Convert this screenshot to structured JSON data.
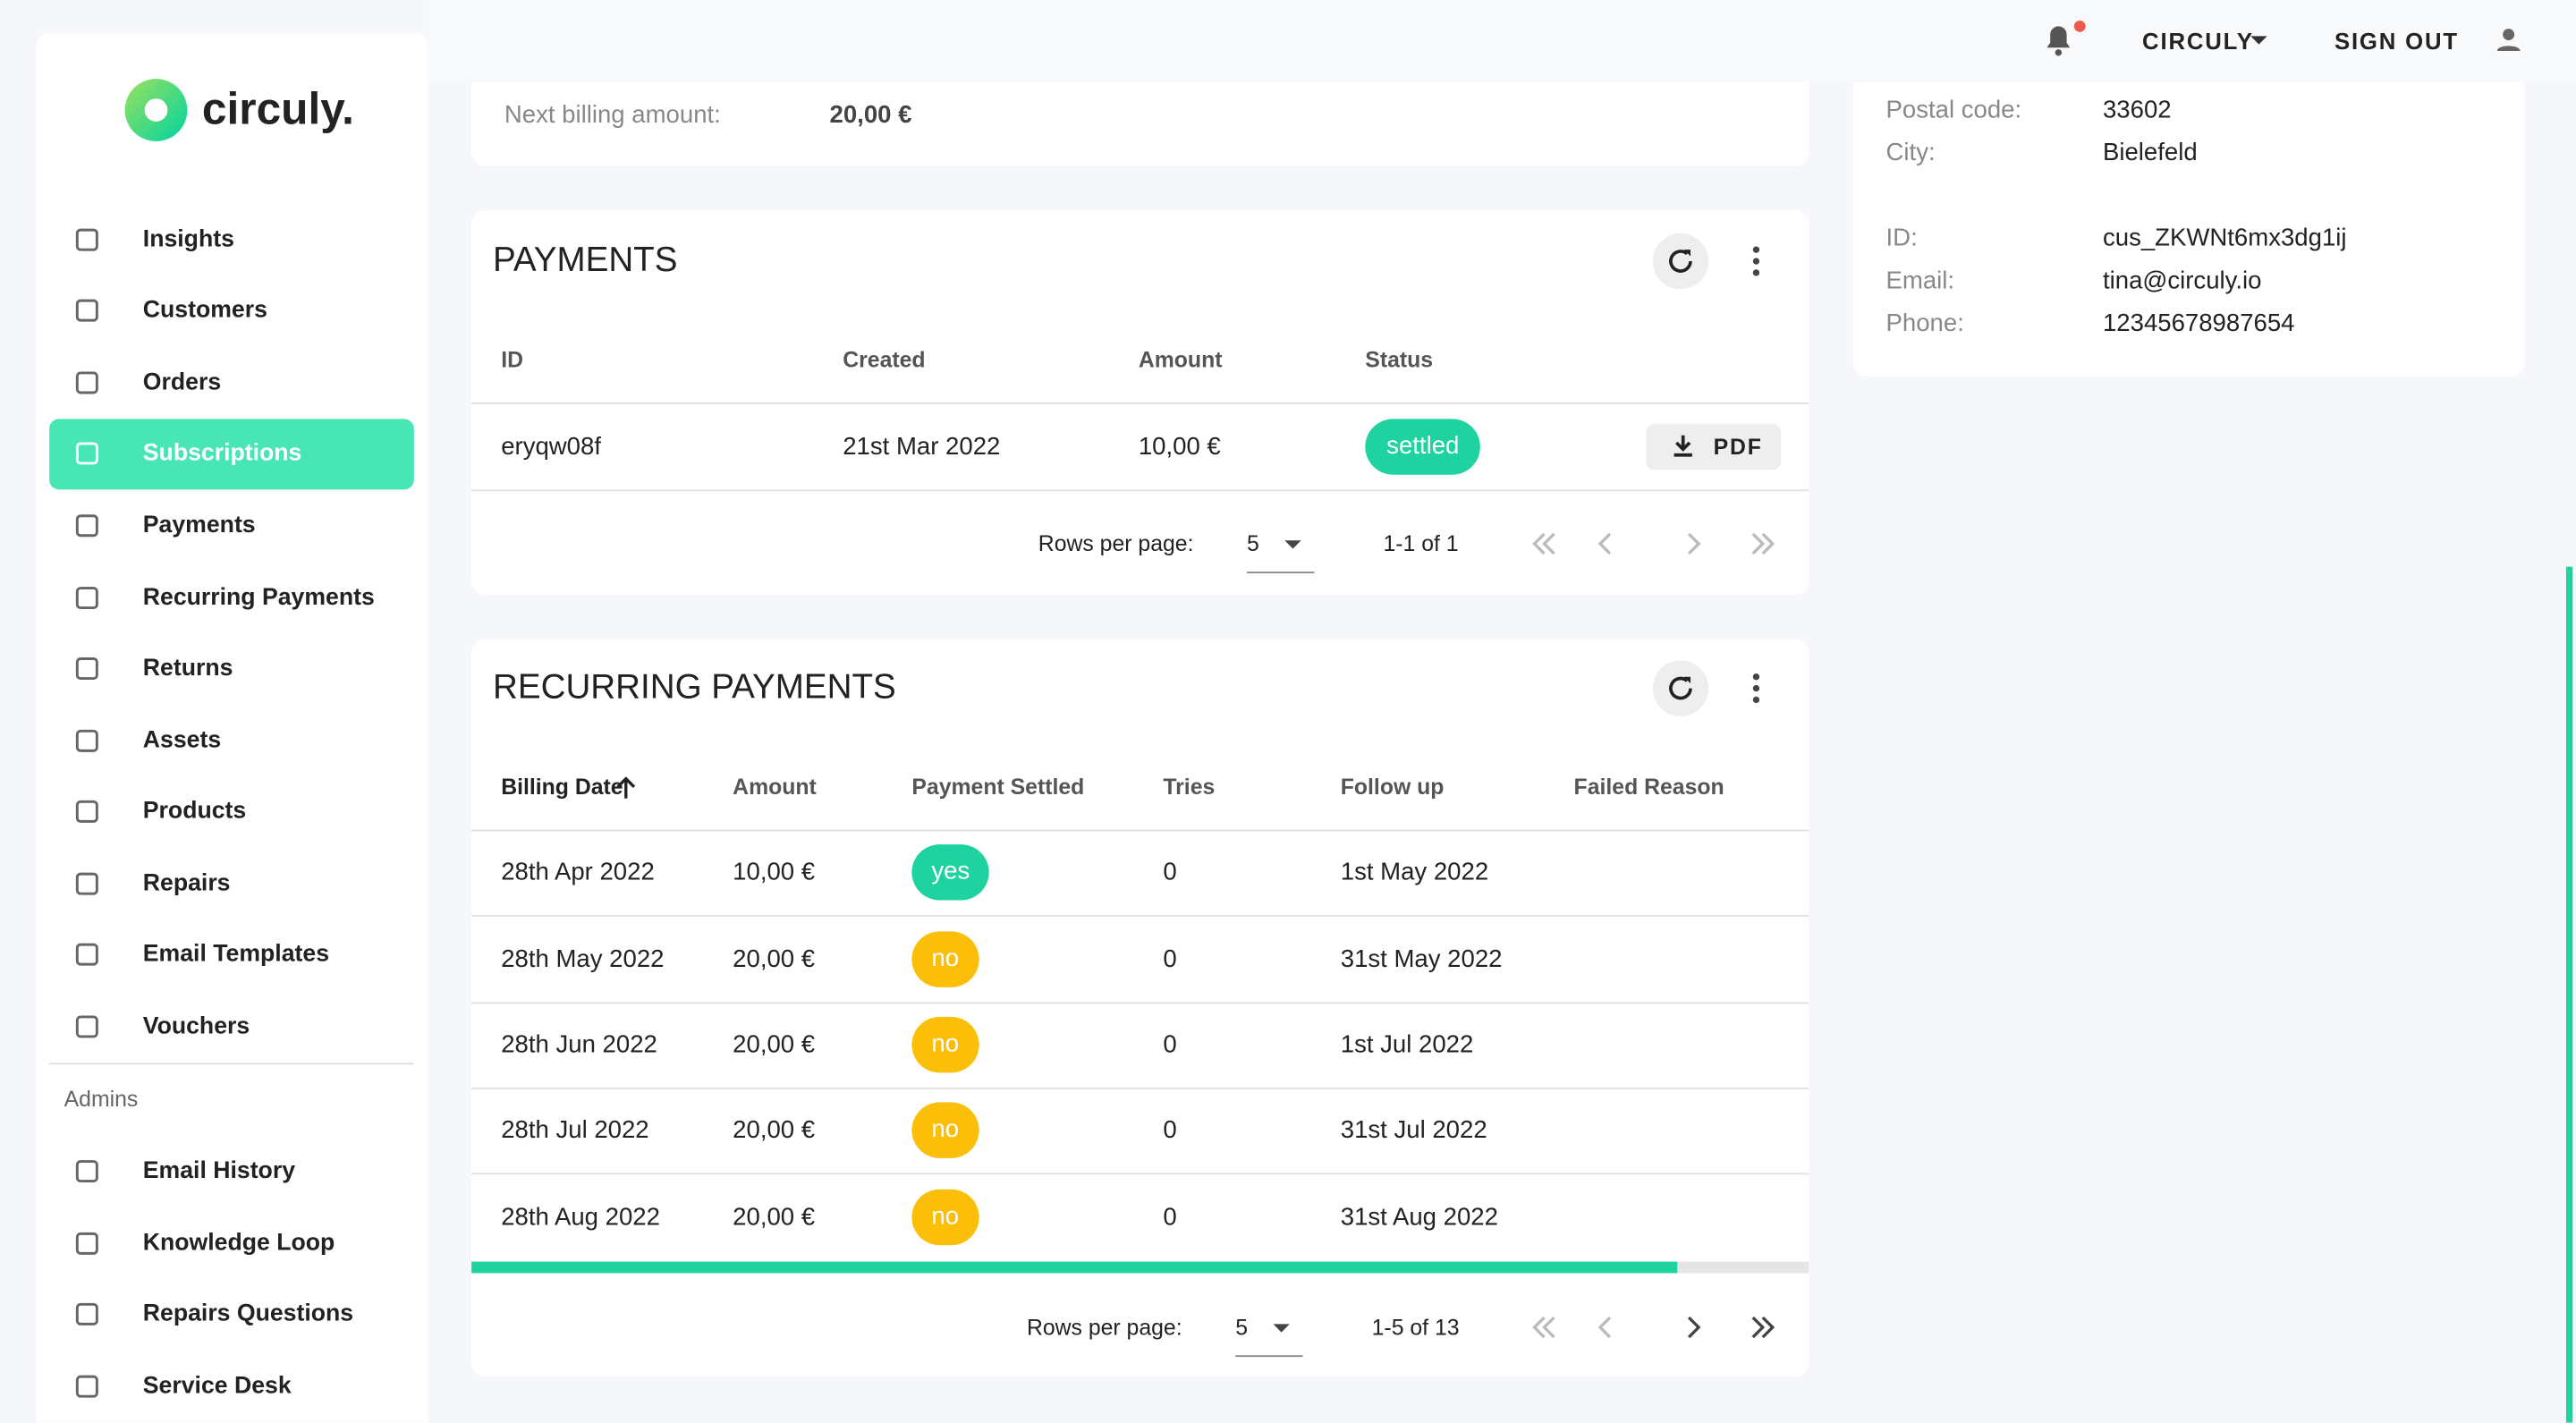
{
  "logo": "circuly.",
  "nav": [
    "Insights",
    "Customers",
    "Orders",
    "Subscriptions",
    "Payments",
    "Recurring Payments",
    "Returns",
    "Assets",
    "Products",
    "Repairs",
    "Email Templates",
    "Vouchers"
  ],
  "admins_label": "Admins",
  "admin_nav": [
    "Email History",
    "Knowledge Loop",
    "Repairs Questions",
    "Service Desk"
  ],
  "topbar": {
    "account": "CIRCULY",
    "sign_out": "SIGN OUT"
  },
  "billing": {
    "label": "Next billing amount:",
    "value": "20,00 €"
  },
  "customer": {
    "fields": [
      {
        "label": "Postal code:",
        "value": "33602"
      },
      {
        "label": "City:",
        "value": "Bielefeld"
      },
      {
        "label": "ID:",
        "value": "cus_ZKWNt6mx3dg1ij"
      },
      {
        "label": "Email:",
        "value": "tina@circuly.io"
      },
      {
        "label": "Phone:",
        "value": "12345678987654"
      }
    ]
  },
  "payments": {
    "title": "PAYMENTS",
    "columns": [
      "ID",
      "Created",
      "Amount",
      "Status"
    ],
    "rows": [
      [
        "eryqw08f",
        "21st Mar 2022",
        "10,00 €",
        "settled"
      ]
    ],
    "pdf": "PDF",
    "rows_per_page_label": "Rows per page:",
    "rows_per_page": 5,
    "range": "1-1 of 1"
  },
  "recurring": {
    "title": "RECURRING PAYMENTS",
    "columns": [
      "Billing Date",
      "Amount",
      "Payment Settled",
      "Tries",
      "Follow up",
      "Failed Reason"
    ],
    "rows": [
      [
        "28th Apr 2022",
        "10,00 €",
        "yes",
        0,
        "1st May 2022"
      ],
      [
        "28th May 2022",
        "20,00 €",
        "no",
        0,
        "31st May 2022"
      ],
      [
        "28th Jun 2022",
        "20,00 €",
        "no",
        0,
        "1st Jul 2022"
      ],
      [
        "28th Jul 2022",
        "20,00 €",
        "no",
        0,
        "31st Jul 2022"
      ],
      [
        "28th Aug 2022",
        "20,00 €",
        "no",
        0,
        "31st Aug 2022"
      ]
    ],
    "rows_per_page_label": "Rows per page:",
    "rows_per_page": 5,
    "range": "1-5 of 13"
  }
}
